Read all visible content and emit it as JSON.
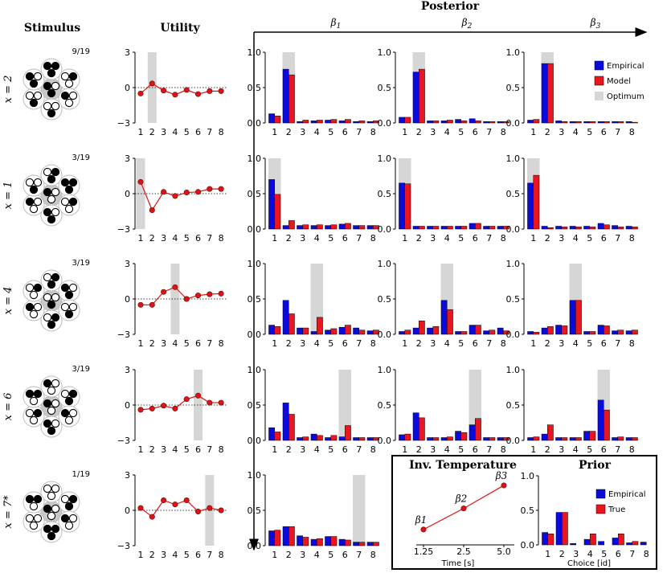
{
  "headers": {
    "stimulus": "Stimulus",
    "utility": "Utility",
    "posterior": "Posterior",
    "inv_temp": "Inv. Temperature",
    "prior": "Prior"
  },
  "betas": [
    "β1",
    "β2",
    "β3"
  ],
  "rows": [
    {
      "label": "x = 2",
      "fraction": "9/19"
    },
    {
      "label": "x = 1",
      "fraction": "3/19"
    },
    {
      "label": "x = 4",
      "fraction": "3/19"
    },
    {
      "label": "x = 6",
      "fraction": "3/19"
    },
    {
      "label": "x = 7*",
      "fraction": "1/19"
    }
  ],
  "legend": {
    "empirical": "Empirical",
    "model": "Model",
    "optimum": "Optimum",
    "true": "True"
  },
  "inv_temp_axis": {
    "xlabel": "Time [s]",
    "xticks": [
      "1.25",
      "2.5",
      "5.0"
    ]
  },
  "prior_axis": {
    "xlabel": "Choice [id]"
  },
  "colors": {
    "empirical": "#0a0adc",
    "model": "#e8161e",
    "optimum": "#d6d6d6",
    "line": "#dc1414"
  },
  "chart_data": {
    "type": "bar",
    "categories": [
      "1",
      "2",
      "3",
      "4",
      "5",
      "6",
      "7",
      "8"
    ],
    "utility": [
      {
        "optimum": 2,
        "values": [
          -0.5,
          0.35,
          -0.25,
          -0.6,
          -0.2,
          -0.55,
          -0.3,
          -0.3
        ],
        "ylim": [
          -3,
          3
        ],
        "yticks": [
          -3,
          0,
          3
        ]
      },
      {
        "optimum": 1,
        "values": [
          1.0,
          -1.4,
          0.15,
          -0.2,
          0.1,
          0.15,
          0.4,
          0.4
        ],
        "ylim": [
          -3,
          3
        ],
        "yticks": [
          -3,
          0,
          3
        ]
      },
      {
        "optimum": 4,
        "values": [
          -0.5,
          -0.5,
          0.6,
          1.0,
          0.0,
          0.3,
          0.4,
          0.45
        ],
        "ylim": [
          -3,
          3
        ],
        "yticks": [
          -3,
          0,
          3
        ]
      },
      {
        "optimum": 6,
        "values": [
          -0.4,
          -0.3,
          -0.05,
          -0.3,
          0.5,
          0.8,
          0.2,
          0.2
        ],
        "ylim": [
          -3,
          3
        ],
        "yticks": [
          -3,
          0,
          3
        ]
      },
      {
        "optimum": 7,
        "values": [
          0.2,
          -0.55,
          0.85,
          0.5,
          0.85,
          -0.1,
          0.2,
          0.0
        ],
        "ylim": [
          -3,
          3
        ],
        "yticks": [
          -3,
          0,
          3
        ]
      }
    ],
    "posterior": [
      [
        {
          "empirical": [
            0.13,
            0.76,
            0.02,
            0.03,
            0.04,
            0.03,
            0.02,
            0.02
          ],
          "model": [
            0.1,
            0.68,
            0.04,
            0.04,
            0.05,
            0.05,
            0.03,
            0.03
          ]
        },
        {
          "empirical": [
            0.08,
            0.72,
            0.03,
            0.03,
            0.05,
            0.06,
            0.02,
            0.02
          ],
          "model": [
            0.08,
            0.76,
            0.03,
            0.04,
            0.03,
            0.03,
            0.02,
            0.02
          ]
        },
        {
          "empirical": [
            0.04,
            0.84,
            0.03,
            0.02,
            0.02,
            0.02,
            0.02,
            0.02
          ],
          "model": [
            0.05,
            0.84,
            0.02,
            0.02,
            0.02,
            0.02,
            0.02,
            0.01
          ]
        }
      ],
      [
        {
          "empirical": [
            0.7,
            0.05,
            0.05,
            0.05,
            0.05,
            0.07,
            0.05,
            0.05
          ],
          "model": [
            0.49,
            0.12,
            0.06,
            0.06,
            0.06,
            0.08,
            0.05,
            0.05
          ]
        },
        {
          "empirical": [
            0.65,
            0.04,
            0.04,
            0.04,
            0.04,
            0.08,
            0.04,
            0.04
          ],
          "model": [
            0.64,
            0.04,
            0.04,
            0.04,
            0.04,
            0.08,
            0.04,
            0.04
          ]
        },
        {
          "empirical": [
            0.65,
            0.04,
            0.04,
            0.04,
            0.04,
            0.08,
            0.05,
            0.04
          ],
          "model": [
            0.76,
            0.02,
            0.03,
            0.03,
            0.03,
            0.06,
            0.03,
            0.03
          ]
        }
      ],
      [
        {
          "empirical": [
            0.13,
            0.48,
            0.09,
            0.04,
            0.06,
            0.1,
            0.09,
            0.05
          ],
          "model": [
            0.11,
            0.29,
            0.09,
            0.24,
            0.08,
            0.13,
            0.06,
            0.06
          ]
        },
        {
          "empirical": [
            0.04,
            0.09,
            0.09,
            0.48,
            0.04,
            0.13,
            0.05,
            0.09
          ],
          "model": [
            0.06,
            0.19,
            0.11,
            0.35,
            0.04,
            0.13,
            0.06,
            0.05
          ]
        },
        {
          "empirical": [
            0.04,
            0.09,
            0.13,
            0.48,
            0.04,
            0.13,
            0.05,
            0.05
          ],
          "model": [
            0.03,
            0.11,
            0.12,
            0.48,
            0.04,
            0.12,
            0.06,
            0.06
          ]
        }
      ],
      [
        {
          "empirical": [
            0.18,
            0.53,
            0.04,
            0.09,
            0.04,
            0.05,
            0.04,
            0.04
          ],
          "model": [
            0.12,
            0.37,
            0.05,
            0.07,
            0.07,
            0.21,
            0.04,
            0.04
          ]
        },
        {
          "empirical": [
            0.08,
            0.39,
            0.04,
            0.04,
            0.13,
            0.22,
            0.04,
            0.04
          ],
          "model": [
            0.09,
            0.32,
            0.04,
            0.05,
            0.11,
            0.31,
            0.04,
            0.04
          ]
        },
        {
          "empirical": [
            0.04,
            0.09,
            0.04,
            0.04,
            0.13,
            0.57,
            0.04,
            0.04
          ],
          "model": [
            0.05,
            0.22,
            0.04,
            0.04,
            0.13,
            0.43,
            0.05,
            0.04
          ]
        }
      ],
      [
        {
          "empirical": [
            0.21,
            0.27,
            0.14,
            0.09,
            0.13,
            0.09,
            0.05,
            0.05
          ],
          "model": [
            0.22,
            0.27,
            0.12,
            0.1,
            0.13,
            0.08,
            0.05,
            0.05
          ]
        }
      ]
    ],
    "posterior_ylim": [
      0,
      1.0
    ],
    "posterior_yticks": [
      "0.0",
      "0.5",
      "1.0"
    ],
    "inv_temperature": {
      "x": [
        1.25,
        2.5,
        5.0
      ],
      "y": [
        1.0,
        1.55,
        2.15
      ],
      "labels": [
        "β1",
        "β2",
        "β3"
      ]
    },
    "prior": {
      "empirical": [
        0.18,
        0.47,
        0.02,
        0.08,
        0.05,
        0.1,
        0.03,
        0.04
      ],
      "true": [
        0.16,
        0.47,
        0.0,
        0.16,
        0.0,
        0.16,
        0.05,
        0.0
      ],
      "ylim": [
        0,
        1.0
      ],
      "yticks": [
        "0.0",
        "0.5",
        "1.0"
      ]
    }
  }
}
